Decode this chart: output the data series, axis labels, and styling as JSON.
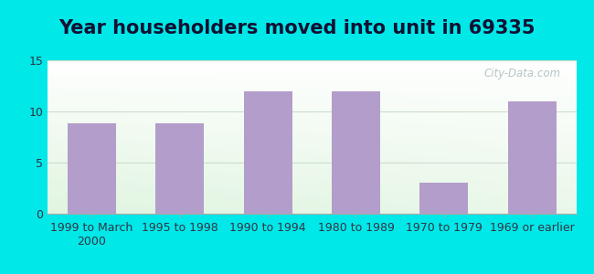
{
  "title": "Year householders moved into unit in 69335",
  "categories": [
    "1999 to March\n2000",
    "1995 to 1998",
    "1990 to 1994",
    "1980 to 1989",
    "1970 to 1979",
    "1969 or earlier"
  ],
  "values": [
    8.8,
    8.8,
    12.0,
    12.0,
    3.0,
    11.0
  ],
  "bar_color": "#b39dca",
  "ylim": [
    0,
    15
  ],
  "yticks": [
    0,
    5,
    10,
    15
  ],
  "background_outer": "#00e8e8",
  "grid_color": "#e0e0e0",
  "title_fontsize": 15,
  "tick_fontsize": 9,
  "watermark": "City-Data.com",
  "watermark_color": "#aabbbb",
  "title_color": "#111133"
}
